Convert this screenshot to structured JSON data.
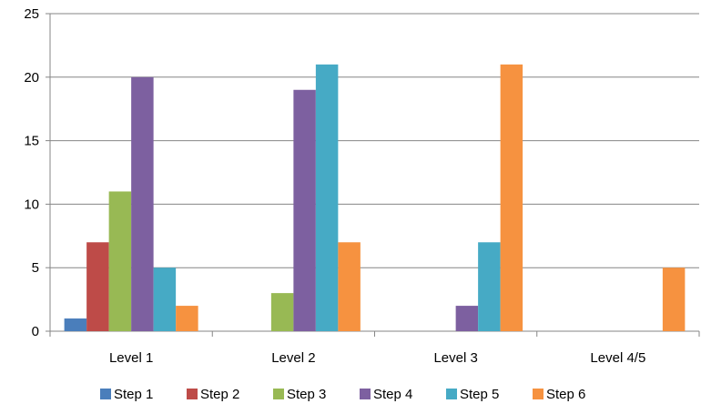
{
  "chart_data": {
    "type": "bar",
    "title": "",
    "xlabel": "",
    "ylabel": "",
    "ylim": [
      0,
      25
    ],
    "yticks": [
      0,
      5,
      10,
      15,
      20,
      25
    ],
    "grid": true,
    "legend_position": "bottom",
    "categories": [
      "Level 1",
      "Level 2",
      "Level 3",
      "Level 4/5"
    ],
    "series": [
      {
        "name": "Step 1",
        "color": "#4a7ebb",
        "values": [
          1,
          0,
          0,
          0
        ]
      },
      {
        "name": "Step 2",
        "color": "#be4b48",
        "values": [
          7,
          0,
          0,
          0
        ]
      },
      {
        "name": "Step 3",
        "color": "#98b954",
        "values": [
          11,
          3,
          0,
          0
        ]
      },
      {
        "name": "Step 4",
        "color": "#7d60a0",
        "values": [
          20,
          19,
          2,
          0
        ]
      },
      {
        "name": "Step 5",
        "color": "#46aac5",
        "values": [
          5,
          21,
          7,
          0
        ]
      },
      {
        "name": "Step 6",
        "color": "#f69240",
        "values": [
          2,
          7,
          21,
          5
        ]
      }
    ]
  }
}
